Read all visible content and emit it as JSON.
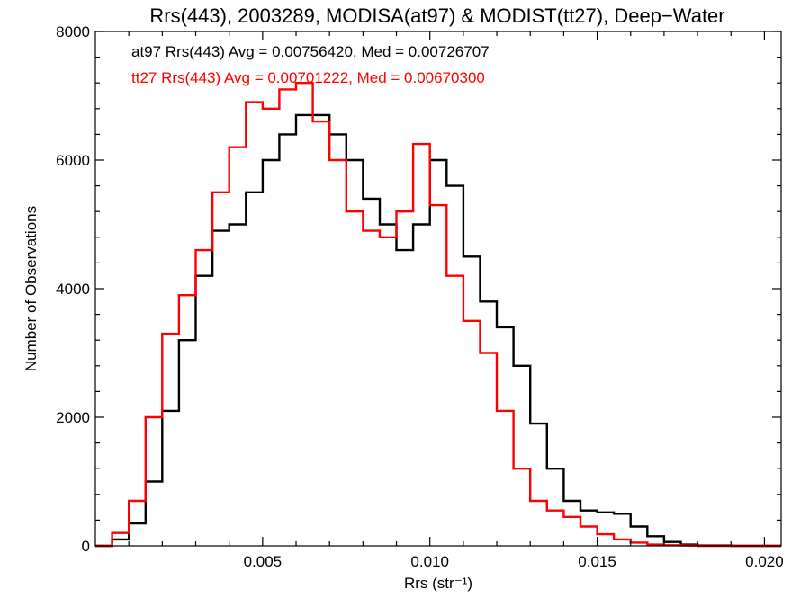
{
  "chart_data": {
    "type": "line",
    "title": "Rrs(443), 2003289, MODISA(at97) & MODIST(tt27), Deep−Water",
    "xlabel": "Rrs (str⁻¹)",
    "ylabel": "Number of Observations",
    "xlim": [
      0.0,
      0.0205
    ],
    "ylim": [
      0,
      8000
    ],
    "x_ticks": [
      0.005,
      0.01,
      0.015,
      0.02
    ],
    "x_tick_labels": [
      "0.005",
      "0.010",
      "0.015",
      "0.020"
    ],
    "y_ticks": [
      0,
      2000,
      4000,
      6000,
      8000
    ],
    "y_tick_labels": [
      "0",
      "2000",
      "4000",
      "6000",
      "8000"
    ],
    "grid": false,
    "style": "step histogram",
    "annotations": [
      {
        "text": "at97 Rrs(443) Avg = 0.00756420, Med = 0.00726707",
        "color": "#000000"
      },
      {
        "text": "tt27 Rrs(443) Avg = 0.00701222, Med = 0.00670300",
        "color": "#ff0000"
      }
    ],
    "series": [
      {
        "color": "#000000",
        "x": [
          0.0,
          0.0005,
          0.001,
          0.0015,
          0.002,
          0.0025,
          0.003,
          0.0035,
          0.004,
          0.0045,
          0.005,
          0.0055,
          0.006,
          0.0065,
          0.007,
          0.0075,
          0.008,
          0.0085,
          0.009,
          0.0095,
          0.01,
          0.0105,
          0.011,
          0.0115,
          0.012,
          0.0125,
          0.013,
          0.0135,
          0.014,
          0.0145,
          0.015,
          0.0155,
          0.016,
          0.0165,
          0.017,
          0.0175,
          0.018,
          0.019,
          0.0205
        ],
        "values": [
          0,
          100,
          350,
          1000,
          2100,
          3200,
          4200,
          4900,
          5000,
          5500,
          6000,
          6400,
          6700,
          6700,
          6400,
          6000,
          5400,
          5000,
          4600,
          5000,
          6000,
          5600,
          4500,
          3800,
          3400,
          2800,
          1900,
          1200,
          700,
          550,
          520,
          500,
          300,
          150,
          60,
          20,
          5,
          0,
          0
        ]
      },
      {
        "color": "#ff0000",
        "x": [
          0.0,
          0.0005,
          0.001,
          0.0015,
          0.002,
          0.0025,
          0.003,
          0.0035,
          0.004,
          0.0045,
          0.005,
          0.0055,
          0.006,
          0.0065,
          0.007,
          0.0075,
          0.008,
          0.0085,
          0.009,
          0.0095,
          0.01,
          0.0105,
          0.011,
          0.0115,
          0.012,
          0.0125,
          0.013,
          0.0135,
          0.014,
          0.0145,
          0.015,
          0.0155,
          0.016,
          0.0165,
          0.017,
          0.0175,
          0.018,
          0.019,
          0.0205
        ],
        "values": [
          0,
          200,
          700,
          2000,
          3300,
          3900,
          4600,
          5500,
          6200,
          6900,
          6800,
          7100,
          7200,
          6600,
          6000,
          5200,
          4900,
          4800,
          5200,
          6250,
          5300,
          4200,
          3500,
          3000,
          2100,
          1200,
          700,
          550,
          450,
          300,
          180,
          100,
          50,
          20,
          10,
          5,
          0,
          0,
          0
        ]
      }
    ]
  }
}
